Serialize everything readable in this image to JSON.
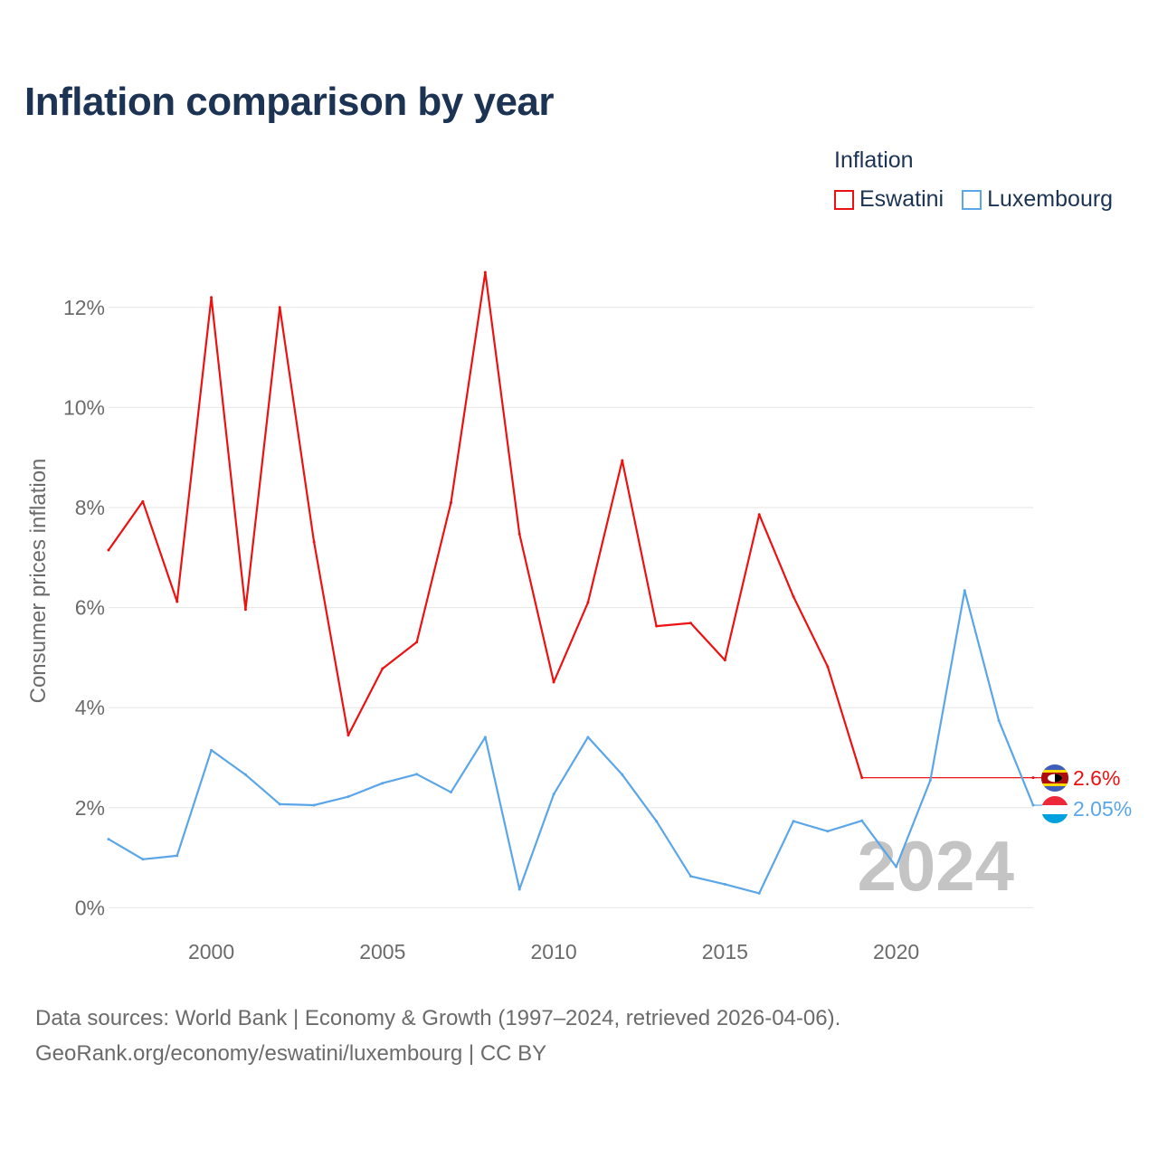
{
  "title": "Inflation comparison by year",
  "legend": {
    "title": "Inflation",
    "entries": [
      {
        "label": "Eswatini",
        "color": "#ee1111"
      },
      {
        "label": "Luxembourg",
        "color": "#5ba6e8"
      }
    ]
  },
  "chart_data": {
    "type": "line",
    "ylabel": "Consumer prices inflation",
    "xlabel": "",
    "xlim": [
      1997,
      2024
    ],
    "ylim": [
      -0.3,
      12.9
    ],
    "y_ticks": [
      0,
      2,
      4,
      6,
      8,
      10,
      12
    ],
    "y_tick_labels": [
      "0%",
      "2%",
      "4%",
      "6%",
      "8%",
      "10%",
      "12%"
    ],
    "x_ticks": [
      2000,
      2005,
      2010,
      2015,
      2020
    ],
    "x_tick_labels": [
      "2000",
      "2005",
      "2010",
      "2015",
      "2020"
    ],
    "grid": true,
    "year_watermark": "2024",
    "x": [
      1997,
      1998,
      1999,
      2000,
      2001,
      2002,
      2003,
      2004,
      2005,
      2006,
      2007,
      2008,
      2009,
      2010,
      2011,
      2012,
      2013,
      2014,
      2015,
      2016,
      2017,
      2018,
      2019,
      2020,
      2021,
      2022,
      2023,
      2024
    ],
    "series": [
      {
        "name": "Eswatini",
        "color": "#ee1111",
        "values": [
          7.15,
          8.12,
          6.12,
          12.2,
          5.96,
          12.0,
          7.31,
          3.45,
          4.78,
          5.31,
          8.1,
          12.7,
          7.47,
          4.51,
          6.1,
          8.94,
          5.63,
          5.69,
          4.95,
          7.86,
          6.22,
          4.82,
          2.6,
          null,
          null,
          null,
          null,
          2.6
        ],
        "end_label": "2.6%"
      },
      {
        "name": "Luxembourg",
        "color": "#5ba6e8",
        "values": [
          1.37,
          0.97,
          1.04,
          3.15,
          2.66,
          2.07,
          2.05,
          2.22,
          2.49,
          2.67,
          2.31,
          3.41,
          0.37,
          2.27,
          3.41,
          2.66,
          1.73,
          0.63,
          0.47,
          0.29,
          1.73,
          1.53,
          1.74,
          0.82,
          2.55,
          6.34,
          3.74,
          2.05
        ],
        "end_label": "2.05%"
      }
    ]
  },
  "footer": {
    "line1": "Data sources: World Bank | Economy & Growth (1997–2024, retrieved 2026-04-06).",
    "line2": "GeoRank.org/economy/eswatini/luxembourg | CC BY"
  }
}
